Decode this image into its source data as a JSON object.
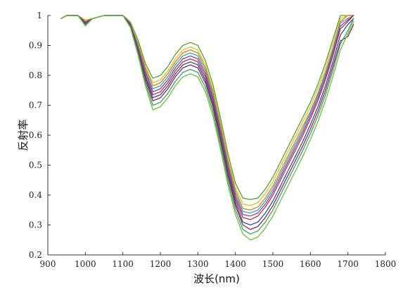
{
  "chart_data": {
    "type": "line",
    "title": "",
    "xlabel": "波长(nm)",
    "ylabel": "反射率",
    "xlim": [
      900,
      1800
    ],
    "ylim": [
      0.2,
      1.0
    ],
    "xticks": [
      900,
      1000,
      1100,
      1200,
      1300,
      1400,
      1500,
      1600,
      1700,
      1800
    ],
    "yticks": [
      0.2,
      0.3,
      0.4,
      0.5,
      0.6,
      0.7,
      0.8,
      0.9,
      1.0
    ],
    "xtick_labels": [
      "900",
      "1000",
      "1100",
      "1200",
      "1300",
      "1400",
      "1500",
      "1600",
      "1700",
      "1800"
    ],
    "ytick_labels": [
      "0.2",
      "0.3",
      "0.4",
      "0.5",
      "0.6",
      "0.7",
      "0.8",
      "0.9",
      "1"
    ],
    "grid": false,
    "legend": "none",
    "x": [
      935,
      950,
      980,
      1000,
      1020,
      1050,
      1080,
      1100,
      1120,
      1140,
      1160,
      1180,
      1200,
      1220,
      1240,
      1260,
      1280,
      1300,
      1320,
      1340,
      1360,
      1380,
      1400,
      1420,
      1440,
      1460,
      1480,
      1500,
      1520,
      1540,
      1560,
      1580,
      1600,
      1620,
      1640,
      1660,
      1680,
      1700,
      1715
    ],
    "series": [
      {
        "color": "#5aa02c",
        "values": [
          0.99,
          1.0,
          1.0,
          0.985,
          0.99,
          1.0,
          1.0,
          1.0,
          0.98,
          0.92,
          0.84,
          0.79,
          0.8,
          0.83,
          0.87,
          0.9,
          0.91,
          0.9,
          0.85,
          0.77,
          0.66,
          0.54,
          0.44,
          0.39,
          0.385,
          0.39,
          0.42,
          0.46,
          0.51,
          0.56,
          0.61,
          0.66,
          0.71,
          0.77,
          0.84,
          0.92,
          1.0,
          1.0,
          1.0
        ]
      },
      {
        "color": "#d8c22a",
        "values": [
          0.99,
          1.0,
          1.0,
          0.985,
          0.99,
          1.0,
          1.0,
          1.0,
          0.98,
          0.91,
          0.83,
          0.775,
          0.785,
          0.815,
          0.855,
          0.885,
          0.895,
          0.885,
          0.835,
          0.755,
          0.645,
          0.525,
          0.425,
          0.37,
          0.365,
          0.375,
          0.405,
          0.445,
          0.495,
          0.545,
          0.595,
          0.645,
          0.695,
          0.755,
          0.825,
          0.905,
          0.99,
          1.0,
          1.0
        ]
      },
      {
        "color": "#e07b1c",
        "values": [
          0.99,
          1.0,
          1.0,
          0.98,
          0.99,
          1.0,
          1.0,
          1.0,
          0.975,
          0.905,
          0.825,
          0.765,
          0.775,
          0.805,
          0.845,
          0.875,
          0.885,
          0.875,
          0.825,
          0.745,
          0.635,
          0.515,
          0.415,
          0.355,
          0.35,
          0.36,
          0.39,
          0.43,
          0.48,
          0.53,
          0.58,
          0.63,
          0.68,
          0.74,
          0.81,
          0.89,
          0.98,
          1.0,
          1.0
        ]
      },
      {
        "color": "#2ca7c9",
        "values": [
          0.99,
          1.0,
          1.0,
          0.98,
          0.99,
          1.0,
          1.0,
          1.0,
          0.975,
          0.9,
          0.815,
          0.755,
          0.765,
          0.795,
          0.835,
          0.865,
          0.875,
          0.865,
          0.815,
          0.735,
          0.625,
          0.505,
          0.405,
          0.345,
          0.34,
          0.35,
          0.38,
          0.42,
          0.47,
          0.52,
          0.57,
          0.62,
          0.675,
          0.735,
          0.805,
          0.885,
          0.975,
          0.99,
          1.0
        ]
      },
      {
        "color": "#8e3fa3",
        "values": [
          0.99,
          1.0,
          1.0,
          0.978,
          0.99,
          1.0,
          1.0,
          1.0,
          0.972,
          0.895,
          0.81,
          0.745,
          0.755,
          0.785,
          0.825,
          0.855,
          0.865,
          0.855,
          0.805,
          0.725,
          0.615,
          0.495,
          0.395,
          0.335,
          0.33,
          0.34,
          0.37,
          0.41,
          0.46,
          0.51,
          0.56,
          0.61,
          0.665,
          0.725,
          0.795,
          0.875,
          0.965,
          0.985,
          1.0
        ]
      },
      {
        "color": "#c9302c",
        "values": [
          0.99,
          1.0,
          1.0,
          0.975,
          0.99,
          1.0,
          1.0,
          1.0,
          0.97,
          0.89,
          0.8,
          0.735,
          0.745,
          0.775,
          0.815,
          0.845,
          0.855,
          0.845,
          0.795,
          0.715,
          0.605,
          0.485,
          0.385,
          0.325,
          0.318,
          0.33,
          0.36,
          0.4,
          0.45,
          0.5,
          0.55,
          0.6,
          0.655,
          0.715,
          0.785,
          0.865,
          0.955,
          0.98,
          1.0
        ]
      },
      {
        "color": "#2b4fa8",
        "values": [
          0.99,
          1.0,
          1.0,
          0.972,
          0.99,
          1.0,
          1.0,
          1.0,
          0.968,
          0.885,
          0.795,
          0.725,
          0.735,
          0.765,
          0.805,
          0.835,
          0.845,
          0.835,
          0.785,
          0.705,
          0.595,
          0.475,
          0.375,
          0.31,
          0.3,
          0.31,
          0.34,
          0.38,
          0.43,
          0.48,
          0.53,
          0.58,
          0.635,
          0.695,
          0.765,
          0.845,
          0.935,
          0.97,
          0.99
        ]
      },
      {
        "color": "#8a2a5e",
        "values": [
          0.99,
          1.0,
          1.0,
          0.97,
          0.99,
          1.0,
          1.0,
          1.0,
          0.965,
          0.88,
          0.785,
          0.715,
          0.725,
          0.755,
          0.795,
          0.825,
          0.835,
          0.825,
          0.775,
          0.695,
          0.585,
          0.465,
          0.365,
          0.3,
          0.285,
          0.295,
          0.325,
          0.365,
          0.415,
          0.465,
          0.515,
          0.565,
          0.62,
          0.68,
          0.75,
          0.83,
          0.915,
          0.93,
          0.97
        ]
      },
      {
        "color": "#3aa35e",
        "values": [
          0.99,
          1.0,
          1.0,
          0.968,
          0.99,
          1.0,
          1.0,
          1.0,
          0.962,
          0.875,
          0.775,
          0.7,
          0.71,
          0.74,
          0.78,
          0.81,
          0.82,
          0.81,
          0.76,
          0.68,
          0.57,
          0.45,
          0.35,
          0.285,
          0.27,
          0.28,
          0.31,
          0.35,
          0.4,
          0.45,
          0.5,
          0.55,
          0.605,
          0.665,
          0.735,
          0.815,
          0.905,
          0.95,
          0.99
        ]
      },
      {
        "color": "#6dbe3d",
        "values": [
          0.99,
          1.0,
          1.0,
          0.965,
          0.99,
          1.0,
          1.0,
          1.0,
          0.96,
          0.87,
          0.765,
          0.685,
          0.695,
          0.725,
          0.765,
          0.795,
          0.805,
          0.795,
          0.745,
          0.665,
          0.555,
          0.435,
          0.335,
          0.27,
          0.25,
          0.26,
          0.29,
          0.33,
          0.38,
          0.43,
          0.48,
          0.53,
          0.585,
          0.645,
          0.715,
          0.795,
          0.885,
          0.94,
          0.98
        ]
      }
    ]
  }
}
